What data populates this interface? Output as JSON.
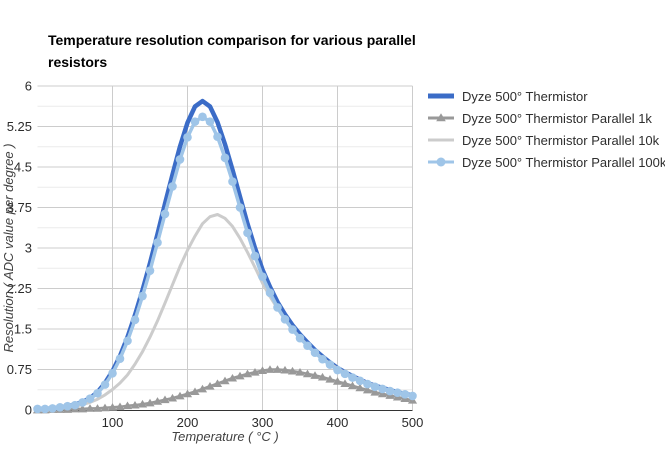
{
  "chart_data": {
    "type": "line",
    "title": "Temperature resolution comparison for various parallel resistors",
    "xlabel": "Temperature ( °C )",
    "ylabel": "Resolution ( ADC value per degree )",
    "xlim": [
      0,
      500
    ],
    "ylim": [
      0,
      6
    ],
    "x_ticks": [
      100,
      200,
      300,
      400,
      500
    ],
    "y_ticks": [
      0,
      0.75,
      1.5,
      2.25,
      3,
      3.75,
      4.5,
      5.25,
      6
    ],
    "grid": {
      "vertical": "major-only",
      "horizontal": "major-and-minor",
      "major_color": "#cccccc",
      "minor_color": "#ebebeb"
    },
    "axis_line_color": "#333333",
    "legend_position": "right",
    "x": [
      0,
      10,
      20,
      30,
      40,
      50,
      60,
      70,
      80,
      90,
      100,
      110,
      120,
      130,
      140,
      150,
      160,
      170,
      180,
      190,
      200,
      210,
      220,
      230,
      240,
      250,
      260,
      270,
      280,
      290,
      300,
      310,
      320,
      330,
      340,
      350,
      360,
      370,
      380,
      390,
      400,
      410,
      420,
      430,
      440,
      450,
      460,
      470,
      480,
      490,
      500
    ],
    "series": [
      {
        "name": "Dyze 500° Thermistor",
        "color": "#3b6cc7",
        "marker": "none",
        "line_width": 4.5,
        "values": [
          0.02,
          0.02,
          0.03,
          0.05,
          0.07,
          0.1,
          0.15,
          0.22,
          0.33,
          0.5,
          0.72,
          1.0,
          1.35,
          1.76,
          2.22,
          2.72,
          3.26,
          3.82,
          4.36,
          4.88,
          5.32,
          5.62,
          5.72,
          5.62,
          5.33,
          4.92,
          4.45,
          3.95,
          3.45,
          3.0,
          2.6,
          2.28,
          2.0,
          1.77,
          1.57,
          1.4,
          1.25,
          1.11,
          0.99,
          0.88,
          0.78,
          0.7,
          0.63,
          0.56,
          0.5,
          0.45,
          0.41,
          0.37,
          0.33,
          0.3,
          0.27
        ]
      },
      {
        "name": "Dyze 500° Thermistor Parallel 1k",
        "color": "#999999",
        "marker": "triangle",
        "line_width": 2.5,
        "values": [
          0.0,
          0.0,
          0.01,
          0.01,
          0.01,
          0.02,
          0.02,
          0.03,
          0.03,
          0.04,
          0.05,
          0.06,
          0.08,
          0.09,
          0.11,
          0.13,
          0.16,
          0.19,
          0.22,
          0.26,
          0.3,
          0.34,
          0.39,
          0.44,
          0.49,
          0.54,
          0.59,
          0.63,
          0.67,
          0.7,
          0.73,
          0.75,
          0.75,
          0.74,
          0.72,
          0.7,
          0.67,
          0.64,
          0.61,
          0.57,
          0.53,
          0.49,
          0.45,
          0.41,
          0.37,
          0.33,
          0.3,
          0.27,
          0.24,
          0.21,
          0.18
        ]
      },
      {
        "name": "Dyze 500° Thermistor Parallel 10k",
        "color": "#cccccc",
        "marker": "none",
        "line_width": 3,
        "values": [
          0.01,
          0.01,
          0.02,
          0.03,
          0.05,
          0.07,
          0.1,
          0.14,
          0.2,
          0.28,
          0.38,
          0.5,
          0.65,
          0.85,
          1.08,
          1.35,
          1.65,
          1.98,
          2.32,
          2.66,
          2.96,
          3.22,
          3.45,
          3.58,
          3.62,
          3.55,
          3.4,
          3.18,
          2.92,
          2.64,
          2.35,
          2.1,
          1.88,
          1.68,
          1.5,
          1.34,
          1.2,
          1.07,
          0.96,
          0.86,
          0.77,
          0.69,
          0.62,
          0.56,
          0.5,
          0.45,
          0.4,
          0.36,
          0.32,
          0.29,
          0.26
        ]
      },
      {
        "name": "Dyze 500° Thermistor Parallel 100k",
        "color": "#9fc5e8",
        "marker": "circle",
        "line_width": 3.5,
        "values": [
          0.02,
          0.02,
          0.03,
          0.05,
          0.07,
          0.09,
          0.14,
          0.21,
          0.31,
          0.47,
          0.68,
          0.95,
          1.28,
          1.67,
          2.11,
          2.58,
          3.1,
          3.63,
          4.14,
          4.64,
          5.05,
          5.34,
          5.43,
          5.34,
          5.06,
          4.67,
          4.23,
          3.75,
          3.28,
          2.85,
          2.47,
          2.17,
          1.9,
          1.68,
          1.49,
          1.33,
          1.19,
          1.06,
          0.94,
          0.84,
          0.74,
          0.67,
          0.6,
          0.54,
          0.48,
          0.43,
          0.39,
          0.35,
          0.32,
          0.29,
          0.26
        ]
      }
    ]
  }
}
